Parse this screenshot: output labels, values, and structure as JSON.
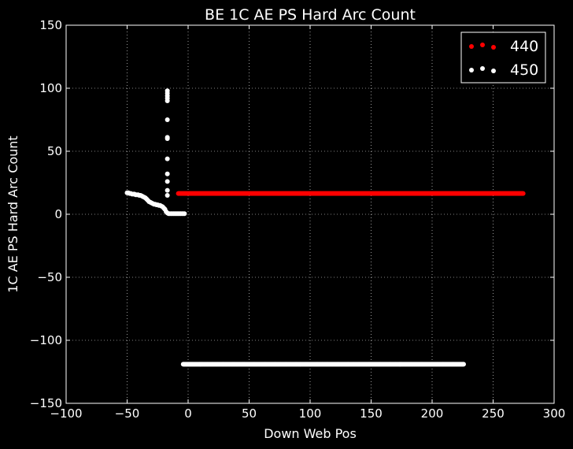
{
  "chart_data": {
    "type": "scatter",
    "title": "BE 1C AE PS Hard Arc Count",
    "xlabel": "Down Web Pos",
    "ylabel": "1C AE PS Hard Arc Count",
    "xlim": [
      -100,
      300
    ],
    "ylim": [
      -150,
      150
    ],
    "xticks": [
      -100,
      -50,
      0,
      50,
      100,
      150,
      200,
      250,
      300
    ],
    "yticks": [
      -150,
      -100,
      -50,
      0,
      50,
      100,
      150
    ],
    "xtick_labels": [
      "−100",
      "−50",
      "0",
      "50",
      "100",
      "150",
      "200",
      "250",
      "300"
    ],
    "ytick_labels": [
      "−150",
      "−100",
      "−50",
      "0",
      "50",
      "100",
      "150"
    ],
    "grid": true,
    "legend_position": "top-right",
    "background": "#000000",
    "series": [
      {
        "name": "440",
        "color": "#ff0000",
        "segments": [
          {
            "kind": "line",
            "x_start": -8,
            "x_end": 275,
            "y": 16.5,
            "step": 0.6
          }
        ]
      },
      {
        "name": "450",
        "color": "#ffffff",
        "points": [
          [
            -50,
            17
          ],
          [
            -49,
            17
          ],
          [
            -48,
            16.5
          ],
          [
            -47,
            16.5
          ],
          [
            -46,
            16
          ],
          [
            -45,
            16
          ],
          [
            -44,
            16
          ],
          [
            -43,
            15.5
          ],
          [
            -42,
            15.5
          ],
          [
            -41,
            15.5
          ],
          [
            -40,
            15
          ],
          [
            -39,
            15
          ],
          [
            -38,
            14.5
          ],
          [
            -37,
            14
          ],
          [
            -36,
            13.5
          ],
          [
            -35,
            13
          ],
          [
            -34,
            12
          ],
          [
            -33,
            11
          ],
          [
            -32,
            10
          ],
          [
            -31,
            9.5
          ],
          [
            -30,
            9
          ],
          [
            -29,
            8.5
          ],
          [
            -28,
            8
          ],
          [
            -27,
            8
          ],
          [
            -26,
            7.5
          ],
          [
            -25,
            7.5
          ],
          [
            -24,
            7
          ],
          [
            -23,
            7
          ],
          [
            -22,
            6.5
          ],
          [
            -21,
            6
          ],
          [
            -20,
            5
          ],
          [
            -19,
            4
          ],
          [
            -18,
            2
          ],
          [
            -17,
            15
          ],
          [
            -17,
            19
          ],
          [
            -17,
            26
          ],
          [
            -17,
            32
          ],
          [
            -17,
            44
          ],
          [
            -17,
            60
          ],
          [
            -17,
            61
          ],
          [
            -17,
            75
          ],
          [
            -17,
            90
          ],
          [
            -17,
            92
          ],
          [
            -17,
            94
          ],
          [
            -17,
            96
          ],
          [
            -17,
            98
          ],
          [
            -17,
            1
          ],
          [
            -16,
            0.5
          ],
          [
            -15,
            0.5
          ],
          [
            -14,
            0.5
          ],
          [
            -13,
            0.5
          ],
          [
            -12,
            0.5
          ],
          [
            -11,
            0.5
          ],
          [
            -10,
            0.5
          ],
          [
            -9,
            0.5
          ],
          [
            -8,
            0.5
          ],
          [
            -7,
            0.5
          ],
          [
            -6,
            0.5
          ],
          [
            -5,
            0.5
          ],
          [
            -4,
            0.5
          ],
          [
            -3,
            0.5
          ]
        ],
        "segments": [
          {
            "kind": "line",
            "x_start": -4,
            "x_end": 226,
            "y": -119,
            "step": 0.6
          }
        ]
      }
    ]
  }
}
